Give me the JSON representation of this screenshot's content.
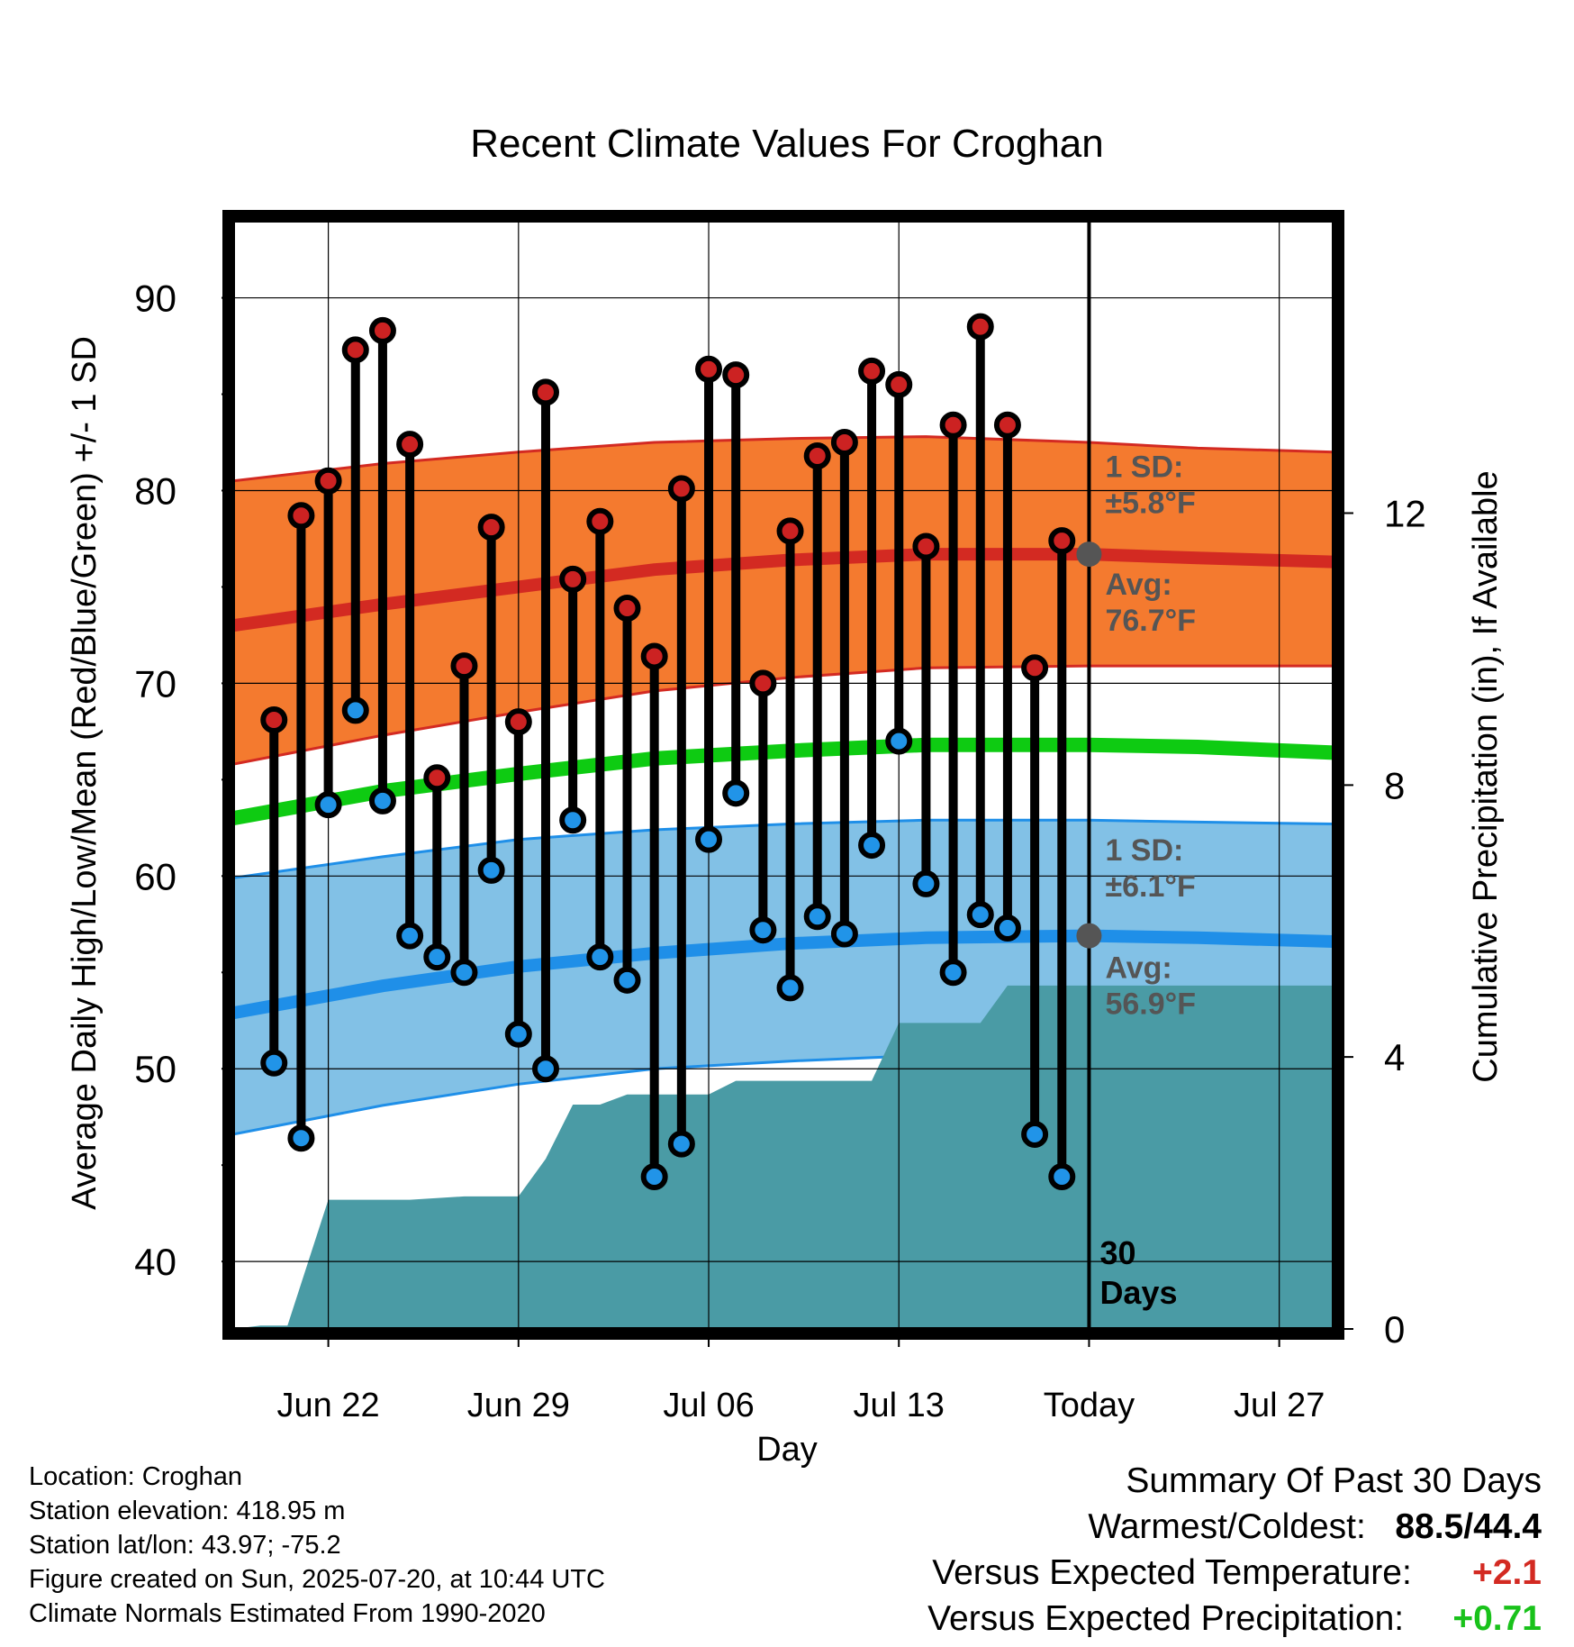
{
  "chart_data": {
    "type": "line",
    "title": "Recent Climate Values For Croghan",
    "xlabel": "Day",
    "ylabel": "Average Daily High/Low/Mean (Red/Blue/Green) +/- 1 SD",
    "ylabel_right": "Cumulative Precipitation (in), If Available",
    "x_tick_labels": [
      "Jun 22",
      "Jun 29",
      "Jul 06",
      "Jul 13",
      "Today",
      "Jul 27"
    ],
    "x_tick_days": [
      3,
      10,
      17,
      24,
      31,
      38
    ],
    "xlim_days": [
      -0.5,
      40
    ],
    "y_ticks": [
      40,
      50,
      60,
      70,
      80,
      90
    ],
    "ylim": [
      36.5,
      94
    ],
    "y_right_ticks": [
      0,
      4,
      8,
      12
    ],
    "ylim_right": [
      0,
      16.3
    ],
    "grid": true,
    "today_marker_label": "30\nDays",
    "normals": {
      "days": [
        -0.5,
        5,
        10,
        15,
        20,
        25,
        31,
        35,
        40
      ],
      "high_avg": [
        73.0,
        74.1,
        75.0,
        75.9,
        76.4,
        76.7,
        76.7,
        76.5,
        76.3
      ],
      "high_upper": [
        80.5,
        81.4,
        82.0,
        82.5,
        82.7,
        82.8,
        82.5,
        82.2,
        82.0
      ],
      "high_lower": [
        65.8,
        67.3,
        68.5,
        69.6,
        70.3,
        70.8,
        70.9,
        70.9,
        70.9
      ],
      "low_avg": [
        52.9,
        54.3,
        55.3,
        56.0,
        56.5,
        56.8,
        56.9,
        56.8,
        56.6
      ],
      "low_upper": [
        59.9,
        61.0,
        61.9,
        62.4,
        62.7,
        62.9,
        62.9,
        62.8,
        62.7
      ],
      "low_lower": [
        46.6,
        48.1,
        49.2,
        50.0,
        50.4,
        50.7,
        50.9,
        50.9,
        50.8
      ],
      "mean_avg": [
        63.0,
        64.4,
        65.3,
        66.1,
        66.5,
        66.8,
        66.8,
        66.7,
        66.4
      ]
    },
    "annotations": {
      "high_sd": "1 SD:\n±5.8°F",
      "high_avg": "Avg:\n76.7°F",
      "high_avg_value": 76.7,
      "low_sd": "1 SD:\n±6.1°F",
      "low_avg": "Avg:\n56.9°F",
      "low_avg_value": 56.9
    },
    "observed": {
      "days": [
        1,
        2,
        3,
        4,
        5,
        6,
        7,
        8,
        9,
        10,
        11,
        12,
        13,
        14,
        15,
        16,
        17,
        18,
        19,
        20,
        21,
        22,
        23,
        24,
        25,
        26,
        27,
        28,
        29,
        30
      ],
      "highs": [
        68.1,
        78.7,
        80.5,
        87.3,
        88.3,
        82.4,
        65.1,
        70.9,
        78.1,
        68.0,
        85.1,
        75.4,
        78.4,
        73.9,
        71.4,
        80.1,
        86.3,
        86.0,
        70.0,
        77.9,
        81.8,
        82.5,
        86.2,
        85.5,
        77.1,
        83.4,
        88.5,
        83.4,
        70.8,
        77.4
      ],
      "lows": [
        50.3,
        46.4,
        63.7,
        68.6,
        63.9,
        56.9,
        55.8,
        55.0,
        60.3,
        51.8,
        50.0,
        62.9,
        55.8,
        54.6,
        44.4,
        46.1,
        61.9,
        64.3,
        57.2,
        54.2,
        57.9,
        57.0,
        61.6,
        67.0,
        59.6,
        55.0,
        58.0,
        57.3,
        46.6,
        44.4
      ]
    },
    "precip": {
      "days": [
        -0.5,
        0.5,
        1.5,
        3,
        4,
        6,
        8,
        10,
        11,
        12,
        13,
        14,
        15,
        16,
        17,
        18,
        19,
        20,
        21,
        22,
        23,
        24,
        25,
        26,
        27,
        28,
        29,
        30,
        31,
        35,
        40
      ],
      "cumulative": [
        0.0,
        0.05,
        0.05,
        1.9,
        1.9,
        1.9,
        1.95,
        1.95,
        2.5,
        3.3,
        3.3,
        3.45,
        3.45,
        3.45,
        3.45,
        3.65,
        3.65,
        3.65,
        3.65,
        3.65,
        3.65,
        4.5,
        4.5,
        4.5,
        4.5,
        5.05,
        5.05,
        5.05,
        5.05,
        5.05,
        5.05
      ]
    },
    "colors": {
      "high_band": "#f47a2f",
      "high_line": "#d32a22",
      "low_band": "#82c1e6",
      "low_line": "#1f8fe8",
      "mean_line": "#0ecb12",
      "precip_fill": "#4a9ba5",
      "high_marker": "#cc2222",
      "low_marker": "#2194e8",
      "annotation_text": "#555555",
      "today_dot": "#555555"
    }
  },
  "info": {
    "location": "Location: Croghan",
    "elevation": "Station elevation: 418.95 m",
    "latlon": "Station lat/lon: 43.97; -75.2",
    "created": "Figure created on Sun, 2025-07-20, at 10:44 UTC",
    "normals": "Climate Normals Estimated From 1990-2020"
  },
  "summary": {
    "heading": "Summary Of Past 30 Days",
    "warmest_label": "Warmest/Coldest:",
    "warmest_value_high": "88.5",
    "warmest_value_sep": "/",
    "warmest_value_low": "44.4",
    "temp_label": "Versus Expected Temperature:",
    "temp_value": "+2.1",
    "precip_label": "Versus Expected Precipitation:",
    "precip_value": "+0.71",
    "temp_color": "#d32a22",
    "precip_color": "#19c21b"
  }
}
